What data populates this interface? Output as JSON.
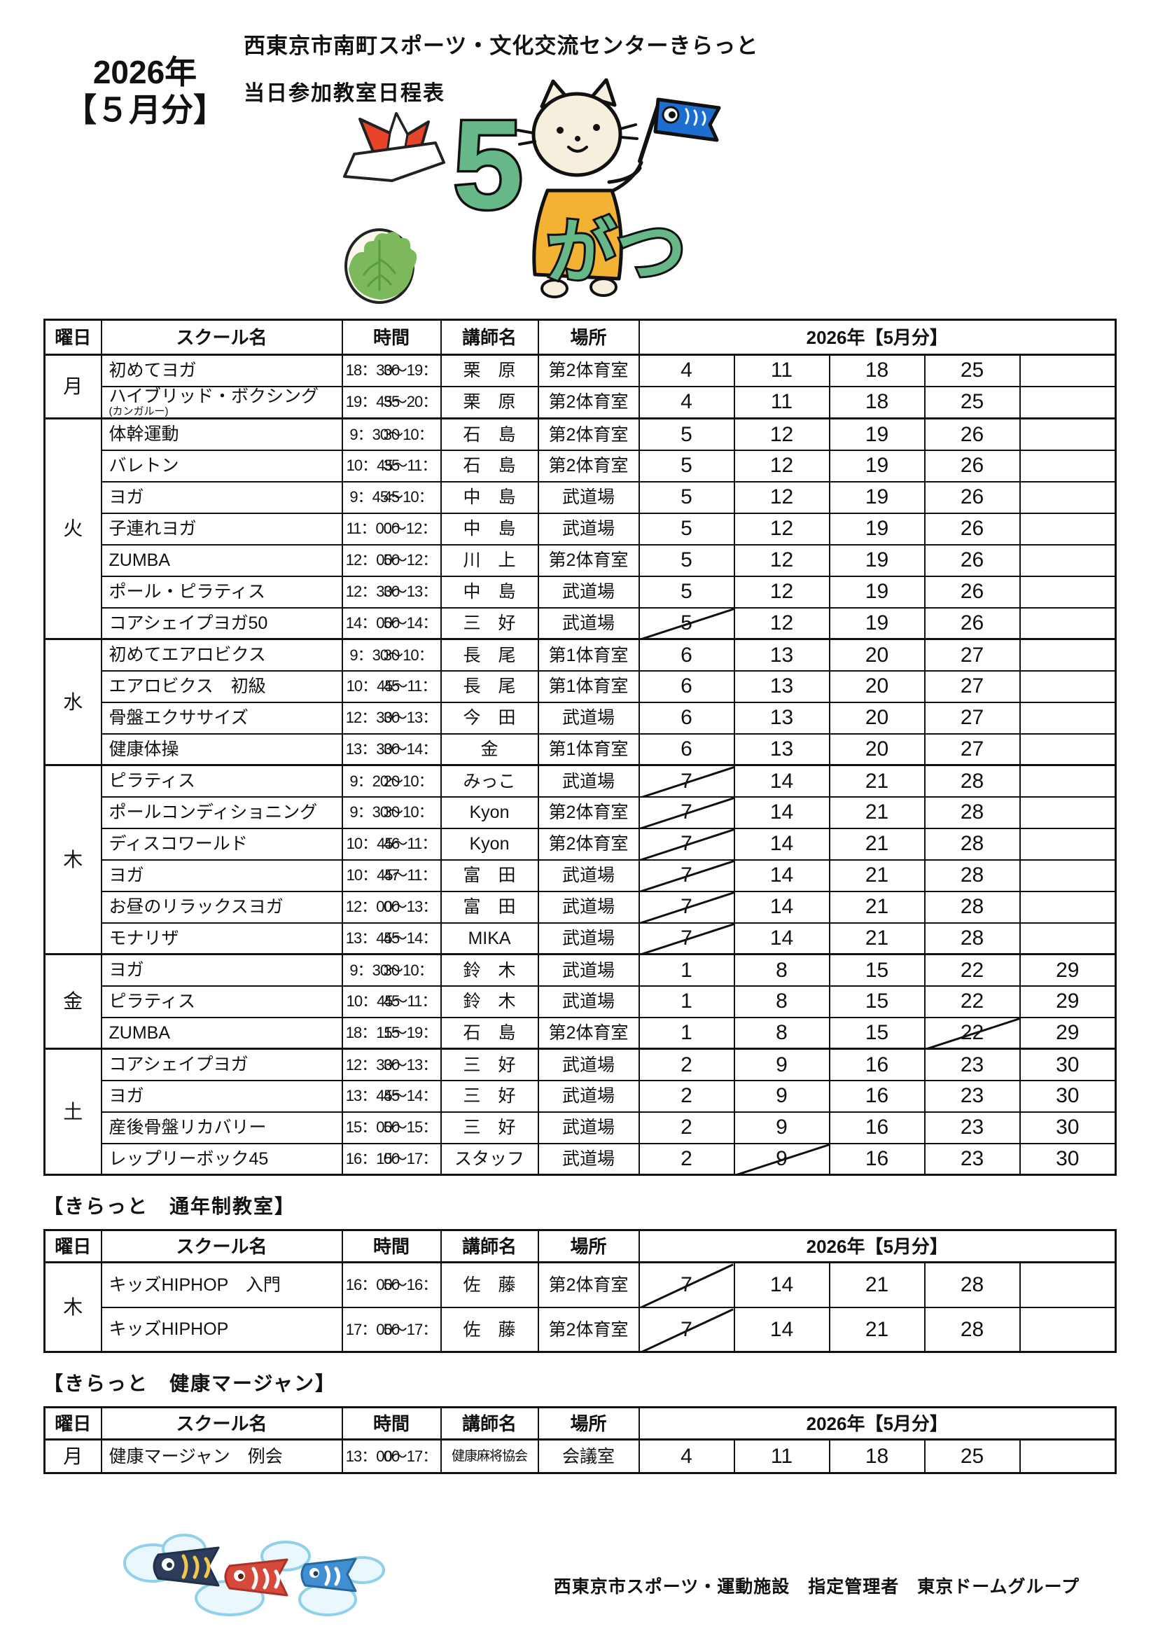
{
  "page": {
    "title": "西東京市南町スポーツ・文化交流センターきらっと",
    "subtitle": "当日参加教室日程表",
    "period_line1": "2026年",
    "period_line2": "【５月分】"
  },
  "illustration": {
    "big5": "5",
    "gatsu": "がつ",
    "colors": {
      "green": "#66b889",
      "cat_cream": "#f6efdd",
      "clothes_orange": "#f3b233",
      "flag_blue": "#1e6ed0",
      "helmet_red": "#e8432b",
      "leaf_green": "#7cb95c",
      "cloud_blue": "#8fd0ea",
      "koi_navy": "#2e3c5c",
      "koi_red": "#d6493b",
      "koi_blue": "#3f8fd2",
      "koi_yellow": "#f0c94a"
    }
  },
  "tables": [
    {
      "name": "main-schedule-table",
      "section_title": "",
      "headers": {
        "day": "曜日",
        "school": "スクール名",
        "time": "時間",
        "teacher": "講師名",
        "place": "場所",
        "month": "2026年【5月分】"
      },
      "groups": [
        {
          "day": "月",
          "rows": [
            {
              "school": "初めてヨガ",
              "note": "",
              "time": "18：30～19：30",
              "teacher": "栗　原",
              "place": "第2体育室",
              "dates": [
                "4",
                "11",
                "18",
                "25",
                ""
              ],
              "crossed": []
            },
            {
              "school": "ハイブリッド・ボクシング",
              "note": "(カンガルー)",
              "time": "19：45～20：35",
              "teacher": "栗　原",
              "place": "第2体育室",
              "dates": [
                "4",
                "11",
                "18",
                "25",
                ""
              ],
              "crossed": []
            }
          ]
        },
        {
          "day": "火",
          "rows": [
            {
              "school": "体幹運動",
              "note": "",
              "time": "9：30～10：30",
              "teacher": "石　島",
              "place": "第2体育室",
              "dates": [
                "5",
                "12",
                "19",
                "26",
                ""
              ],
              "crossed": []
            },
            {
              "school": "バレトン",
              "note": "",
              "time": "10：45～11：35",
              "teacher": "石　島",
              "place": "第2体育室",
              "dates": [
                "5",
                "12",
                "19",
                "26",
                ""
              ],
              "crossed": []
            },
            {
              "school": "ヨガ",
              "note": "",
              "time": "9：45～10：45",
              "teacher": "中　島",
              "place": "武道場",
              "dates": [
                "5",
                "12",
                "19",
                "26",
                ""
              ],
              "crossed": []
            },
            {
              "school": "子連れヨガ",
              "note": "",
              "time": "11：00～12：00",
              "teacher": "中　島",
              "place": "武道場",
              "dates": [
                "5",
                "12",
                "19",
                "26",
                ""
              ],
              "crossed": []
            },
            {
              "school": "ZUMBA",
              "note": "",
              "time": "12：00～12：50",
              "teacher": "川　上",
              "place": "第2体育室",
              "dates": [
                "5",
                "12",
                "19",
                "26",
                ""
              ],
              "crossed": []
            },
            {
              "school": "ポール・ピラティス",
              "note": "",
              "time": "12：30～13：30",
              "teacher": "中　島",
              "place": "武道場",
              "dates": [
                "5",
                "12",
                "19",
                "26",
                ""
              ],
              "crossed": []
            },
            {
              "school": "コアシェイプヨガ50",
              "note": "",
              "time": "14：00～14：50",
              "teacher": "三　好",
              "place": "武道場",
              "dates": [
                "5",
                "12",
                "19",
                "26",
                ""
              ],
              "crossed": [
                0
              ]
            }
          ]
        },
        {
          "day": "水",
          "rows": [
            {
              "school": "初めてエアロビクス",
              "note": "",
              "time": "9：30～10：30",
              "teacher": "長　尾",
              "place": "第1体育室",
              "dates": [
                "6",
                "13",
                "20",
                "27",
                ""
              ],
              "crossed": []
            },
            {
              "school": "エアロビクス　初級",
              "note": "",
              "time": "10：45～11：45",
              "teacher": "長　尾",
              "place": "第1体育室",
              "dates": [
                "6",
                "13",
                "20",
                "27",
                ""
              ],
              "crossed": []
            },
            {
              "school": "骨盤エクササイズ",
              "note": "",
              "time": "12：30～13：30",
              "teacher": "今　田",
              "place": "武道場",
              "dates": [
                "6",
                "13",
                "20",
                "27",
                ""
              ],
              "crossed": []
            },
            {
              "school": "健康体操",
              "note": "",
              "time": "13：30～14：30",
              "teacher": "金",
              "place": "第1体育室",
              "dates": [
                "6",
                "13",
                "20",
                "27",
                ""
              ],
              "crossed": []
            }
          ]
        },
        {
          "day": "木",
          "rows": [
            {
              "school": "ピラティス",
              "note": "",
              "time": "9：20～10：20",
              "teacher": "みっこ",
              "place": "武道場",
              "dates": [
                "7",
                "14",
                "21",
                "28",
                ""
              ],
              "crossed": [
                0
              ]
            },
            {
              "school": "ポールコンディショニング",
              "note": "",
              "time": "9：30～10：30",
              "teacher": "Kyon",
              "place": "第2体育室",
              "dates": [
                "7",
                "14",
                "21",
                "28",
                ""
              ],
              "crossed": [
                0
              ]
            },
            {
              "school": "ディスコワールド",
              "note": "",
              "time": "10：45～11：46",
              "teacher": "Kyon",
              "place": "第2体育室",
              "dates": [
                "7",
                "14",
                "21",
                "28",
                ""
              ],
              "crossed": [
                0
              ]
            },
            {
              "school": "ヨガ",
              "note": "",
              "time": "10：45～11：47",
              "teacher": "富　田",
              "place": "武道場",
              "dates": [
                "7",
                "14",
                "21",
                "28",
                ""
              ],
              "crossed": [
                0
              ]
            },
            {
              "school": "お昼のリラックスヨガ",
              "note": "",
              "time": "12：00～13：00",
              "teacher": "富　田",
              "place": "武道場",
              "dates": [
                "7",
                "14",
                "21",
                "28",
                ""
              ],
              "crossed": [
                0
              ]
            },
            {
              "school": "モナリザ",
              "note": "",
              "time": "13：45～14：45",
              "teacher": "MIKA",
              "place": "武道場",
              "dates": [
                "7",
                "14",
                "21",
                "28",
                ""
              ],
              "crossed": [
                0
              ]
            }
          ]
        },
        {
          "day": "金",
          "rows": [
            {
              "school": "ヨガ",
              "note": "",
              "time": "9：30～10：30",
              "teacher": "鈴　木",
              "place": "武道場",
              "dates": [
                "1",
                "8",
                "15",
                "22",
                "29"
              ],
              "crossed": []
            },
            {
              "school": "ピラティス",
              "note": "",
              "time": "10：45～11：45",
              "teacher": "鈴　木",
              "place": "武道場",
              "dates": [
                "1",
                "8",
                "15",
                "22",
                "29"
              ],
              "crossed": []
            },
            {
              "school": "ZUMBA",
              "note": "",
              "time": "18：15～19：15",
              "teacher": "石　島",
              "place": "第2体育室",
              "dates": [
                "1",
                "8",
                "15",
                "22",
                "29"
              ],
              "crossed": [
                3
              ]
            }
          ]
        },
        {
          "day": "土",
          "rows": [
            {
              "school": "コアシェイプヨガ",
              "note": "",
              "time": "12：30～13：30",
              "teacher": "三　好",
              "place": "武道場",
              "dates": [
                "2",
                "9",
                "16",
                "23",
                "30"
              ],
              "crossed": []
            },
            {
              "school": "ヨガ",
              "note": "",
              "time": "13：45～14：45",
              "teacher": "三　好",
              "place": "武道場",
              "dates": [
                "2",
                "9",
                "16",
                "23",
                "30"
              ],
              "crossed": []
            },
            {
              "school": "産後骨盤リカバリー",
              "note": "",
              "time": "15：00～15：50",
              "teacher": "三　好",
              "place": "武道場",
              "dates": [
                "2",
                "9",
                "16",
                "23",
                "30"
              ],
              "crossed": []
            },
            {
              "school": "レップリーボック45",
              "note": "",
              "time": "16：15～17：00",
              "teacher": "スタッフ",
              "place": "武道場",
              "dates": [
                "2",
                "9",
                "16",
                "23",
                "30"
              ],
              "crossed": [
                1
              ]
            }
          ]
        }
      ]
    },
    {
      "name": "annual-classes-table",
      "section_title": "【きらっと　通年制教室】",
      "headers": {
        "day": "曜日",
        "school": "スクール名",
        "time": "時間",
        "teacher": "講師名",
        "place": "場所",
        "month": "2026年【5月分】"
      },
      "groups": [
        {
          "day": "木",
          "rows": [
            {
              "school": "キッズHIPHOP　入門",
              "note": "",
              "time": "16：00～16：50",
              "teacher": "佐　藤",
              "place": "第2体育室",
              "dates": [
                "7",
                "14",
                "21",
                "28",
                ""
              ],
              "crossed": [
                0
              ]
            },
            {
              "school": "キッズHIPHOP",
              "note": "",
              "time": "17：00～17：50",
              "teacher": "佐　藤",
              "place": "第2体育室",
              "dates": [
                "7",
                "14",
                "21",
                "28",
                ""
              ],
              "crossed": [
                0
              ]
            }
          ]
        }
      ]
    },
    {
      "name": "health-mahjong-table",
      "section_title": "【きらっと　健康マージャン】",
      "headers": {
        "day": "曜日",
        "school": "スクール名",
        "time": "時間",
        "teacher": "講師名",
        "place": "場所",
        "month": "2026年【5月分】"
      },
      "groups": [
        {
          "day": "月",
          "rows": [
            {
              "school": "健康マージャン　例会",
              "note": "",
              "time": "13：00～17：00",
              "teacher": "健康麻将協会",
              "place": "会議室",
              "dates": [
                "4",
                "11",
                "18",
                "25",
                ""
              ],
              "crossed": []
            }
          ]
        }
      ]
    }
  ],
  "footer": {
    "credit": "西東京市スポーツ・運動施設　指定管理者　東京ドームグループ"
  }
}
